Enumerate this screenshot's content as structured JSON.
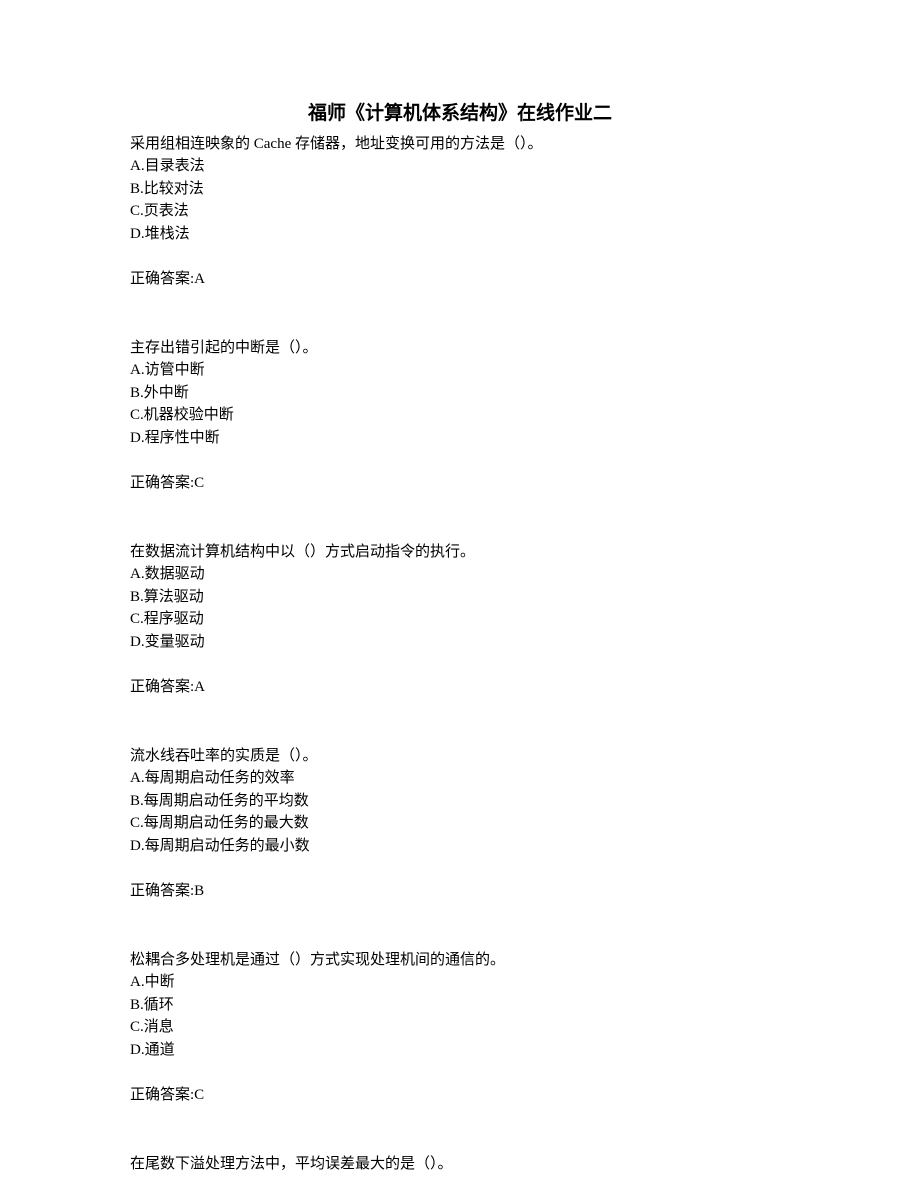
{
  "title": "福师《计算机体系结构》在线作业二",
  "answer_prefix": "正确答案:",
  "questions": [
    {
      "text": "采用组相连映象的 Cache 存储器，地址变换可用的方法是（）。",
      "options": [
        "A.目录表法",
        "B.比较对法",
        "C.页表法",
        "D.堆栈法"
      ],
      "answer": "A"
    },
    {
      "text": "主存出错引起的中断是（）。",
      "options": [
        "A.访管中断",
        "B.外中断",
        "C.机器校验中断",
        "D.程序性中断"
      ],
      "answer": "C"
    },
    {
      "text": "在数据流计算机结构中以（）方式启动指令的执行。",
      "options": [
        "A.数据驱动",
        "B.算法驱动",
        "C.程序驱动",
        "D.变量驱动"
      ],
      "answer": "A"
    },
    {
      "text": "流水线吞吐率的实质是（）。",
      "options": [
        "A.每周期启动任务的效率",
        "B.每周期启动任务的平均数",
        "C.每周期启动任务的最大数",
        "D.每周期启动任务的最小数"
      ],
      "answer": "B"
    },
    {
      "text": "松耦合多处理机是通过（）方式实现处理机间的通信的。",
      "options": [
        "A.中断",
        "B.循环",
        "C.消息",
        "D.通道"
      ],
      "answer": "C"
    },
    {
      "text": "在尾数下溢处理方法中，平均误差最大的是（）。",
      "options": [],
      "answer": null
    }
  ]
}
